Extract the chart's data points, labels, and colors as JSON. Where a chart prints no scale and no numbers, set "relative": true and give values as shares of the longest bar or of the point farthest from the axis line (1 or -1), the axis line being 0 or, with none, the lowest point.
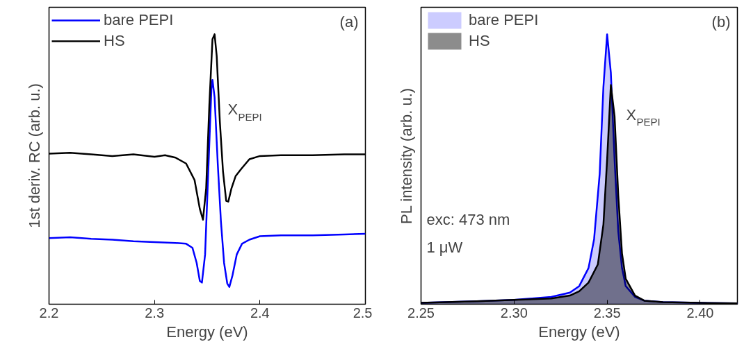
{
  "chart_data": [
    {
      "type": "line",
      "relative": true,
      "xlabel": "Energy (eV)",
      "ylabel": "1st deriv. RC (arb. u.)",
      "xlim": [
        2.2,
        2.5
      ],
      "xticks": [
        2.2,
        2.3,
        2.4,
        2.5
      ],
      "grid": false,
      "legend": "top left",
      "annotations": [
        "(a)",
        {
          "text": "X$_{PEPI}$",
          "x": 2.355,
          "y": 0.831
        }
      ],
      "series": [
        {
          "name": "bare PEPI",
          "color": "#0000ff",
          "x": [
            2.2,
            2.22,
            2.24,
            2.26,
            2.28,
            2.3,
            2.32,
            2.33,
            2.336,
            2.34,
            2.343,
            2.345,
            2.348,
            2.351,
            2.354,
            2.355,
            2.357,
            2.36,
            2.363,
            2.366,
            2.369,
            2.371,
            2.374,
            2.378,
            2.383,
            2.39,
            2.4,
            2.42,
            2.45,
            2.48,
            2.5
          ],
          "values": [
            0.245,
            0.248,
            0.242,
            0.239,
            0.233,
            0.23,
            0.227,
            0.224,
            0.209,
            0.153,
            0.086,
            0.08,
            0.184,
            0.491,
            0.798,
            0.831,
            0.767,
            0.521,
            0.307,
            0.153,
            0.077,
            0.064,
            0.107,
            0.184,
            0.224,
            0.239,
            0.252,
            0.255,
            0.255,
            0.258,
            0.261
          ]
        },
        {
          "name": "HS",
          "color": "#000000",
          "x": [
            2.2,
            2.22,
            2.24,
            2.26,
            2.28,
            2.3,
            2.31,
            2.32,
            2.33,
            2.338,
            2.343,
            2.346,
            2.349,
            2.352,
            2.355,
            2.357,
            2.359,
            2.362,
            2.365,
            2.368,
            2.37,
            2.373,
            2.377,
            2.382,
            2.39,
            2.4,
            2.42,
            2.45,
            2.48,
            2.5
          ],
          "values": [
            0.558,
            0.561,
            0.555,
            0.549,
            0.555,
            0.546,
            0.552,
            0.543,
            0.521,
            0.46,
            0.353,
            0.313,
            0.429,
            0.736,
            0.982,
            1,
            0.92,
            0.675,
            0.491,
            0.383,
            0.38,
            0.429,
            0.475,
            0.5,
            0.537,
            0.549,
            0.552,
            0.552,
            0.555,
            0.555
          ]
        }
      ]
    },
    {
      "type": "area",
      "relative": true,
      "xlabel": "Energy (eV)",
      "ylabel": "PL intensity (arb. u.)",
      "xlim": [
        2.25,
        2.42
      ],
      "xticks": [
        {
          "value": 2.25,
          "label": "2.25"
        },
        {
          "value": 2.3,
          "label": "2.30"
        },
        {
          "value": 2.35,
          "label": "2.35"
        },
        {
          "value": 2.4,
          "label": "2.40"
        }
      ],
      "grid": false,
      "legend": "top left",
      "annotations": [
        "(b)",
        "exc: 473 nm",
        "1 μW",
        {
          "text": "X$_{PEPI}$",
          "x": 2.352,
          "y": 0.812
        }
      ],
      "series": [
        {
          "name": "bare PEPI",
          "color": "#0000ff",
          "x": [
            2.25,
            2.28,
            2.3,
            2.32,
            2.33,
            2.335,
            2.34,
            2.343,
            2.346,
            2.348,
            2.35,
            2.352,
            2.354,
            2.356,
            2.358,
            2.36,
            2.365,
            2.37,
            2.38,
            2.4,
            2.42
          ],
          "values": [
            0.005,
            0.011,
            0.016,
            0.027,
            0.043,
            0.067,
            0.134,
            0.241,
            0.483,
            0.804,
            1,
            0.858,
            0.536,
            0.268,
            0.134,
            0.067,
            0.027,
            0.013,
            0.008,
            0.005,
            0.003
          ]
        },
        {
          "name": "HS",
          "color": "#000000",
          "x": [
            2.25,
            2.28,
            2.3,
            2.32,
            2.33,
            2.335,
            2.34,
            2.345,
            2.348,
            2.35,
            2.352,
            2.354,
            2.356,
            2.358,
            2.36,
            2.365,
            2.37,
            2.38,
            2.4,
            2.42
          ],
          "values": [
            0.005,
            0.011,
            0.016,
            0.021,
            0.032,
            0.048,
            0.08,
            0.147,
            0.295,
            0.536,
            0.812,
            0.697,
            0.402,
            0.188,
            0.094,
            0.032,
            0.013,
            0.008,
            0.005,
            0.003
          ]
        }
      ]
    }
  ]
}
